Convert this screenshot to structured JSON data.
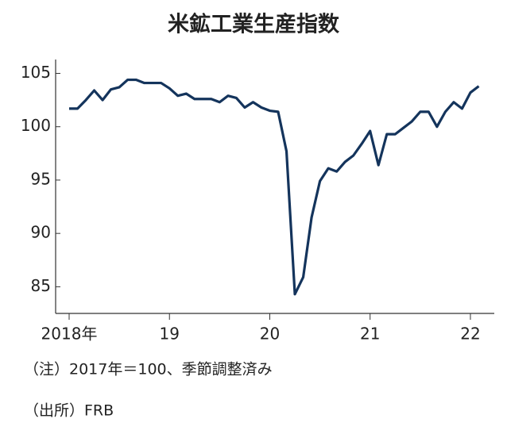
{
  "chart_data": {
    "type": "line",
    "title": "米鉱工業生産指数",
    "categories": [
      "2018年",
      null,
      null,
      null,
      null,
      null,
      null,
      null,
      null,
      null,
      null,
      null,
      "19",
      null,
      null,
      null,
      null,
      null,
      null,
      null,
      null,
      null,
      null,
      null,
      "20",
      null,
      null,
      null,
      null,
      null,
      null,
      null,
      null,
      null,
      null,
      null,
      "21",
      null,
      null,
      null,
      null,
      null,
      null,
      null,
      null,
      null,
      null,
      null,
      "22",
      null
    ],
    "series": [
      {
        "name": "米鉱工業生産指数",
        "color": "#14345c",
        "values": [
          101.7,
          101.7,
          102.5,
          103.4,
          102.5,
          103.5,
          103.7,
          104.4,
          104.4,
          104.1,
          104.1,
          104.1,
          103.6,
          102.9,
          103.1,
          102.6,
          102.6,
          102.6,
          102.3,
          102.9,
          102.7,
          101.8,
          102.3,
          101.8,
          101.5,
          101.4,
          97.7,
          84.3,
          85.9,
          91.5,
          94.9,
          96.1,
          95.8,
          96.7,
          97.3,
          98.4,
          99.6,
          96.4,
          99.3,
          99.3,
          99.9,
          100.5,
          101.4,
          101.4,
          100.0,
          101.4,
          102.3,
          101.7,
          103.2,
          103.8
        ]
      }
    ],
    "ylim": [
      82.5,
      106.3
    ],
    "yticks": [
      85,
      90,
      95,
      100,
      105
    ],
    "notes": [
      "（注）2017年＝100、季節調整済み",
      "（出所）FRB"
    ]
  }
}
